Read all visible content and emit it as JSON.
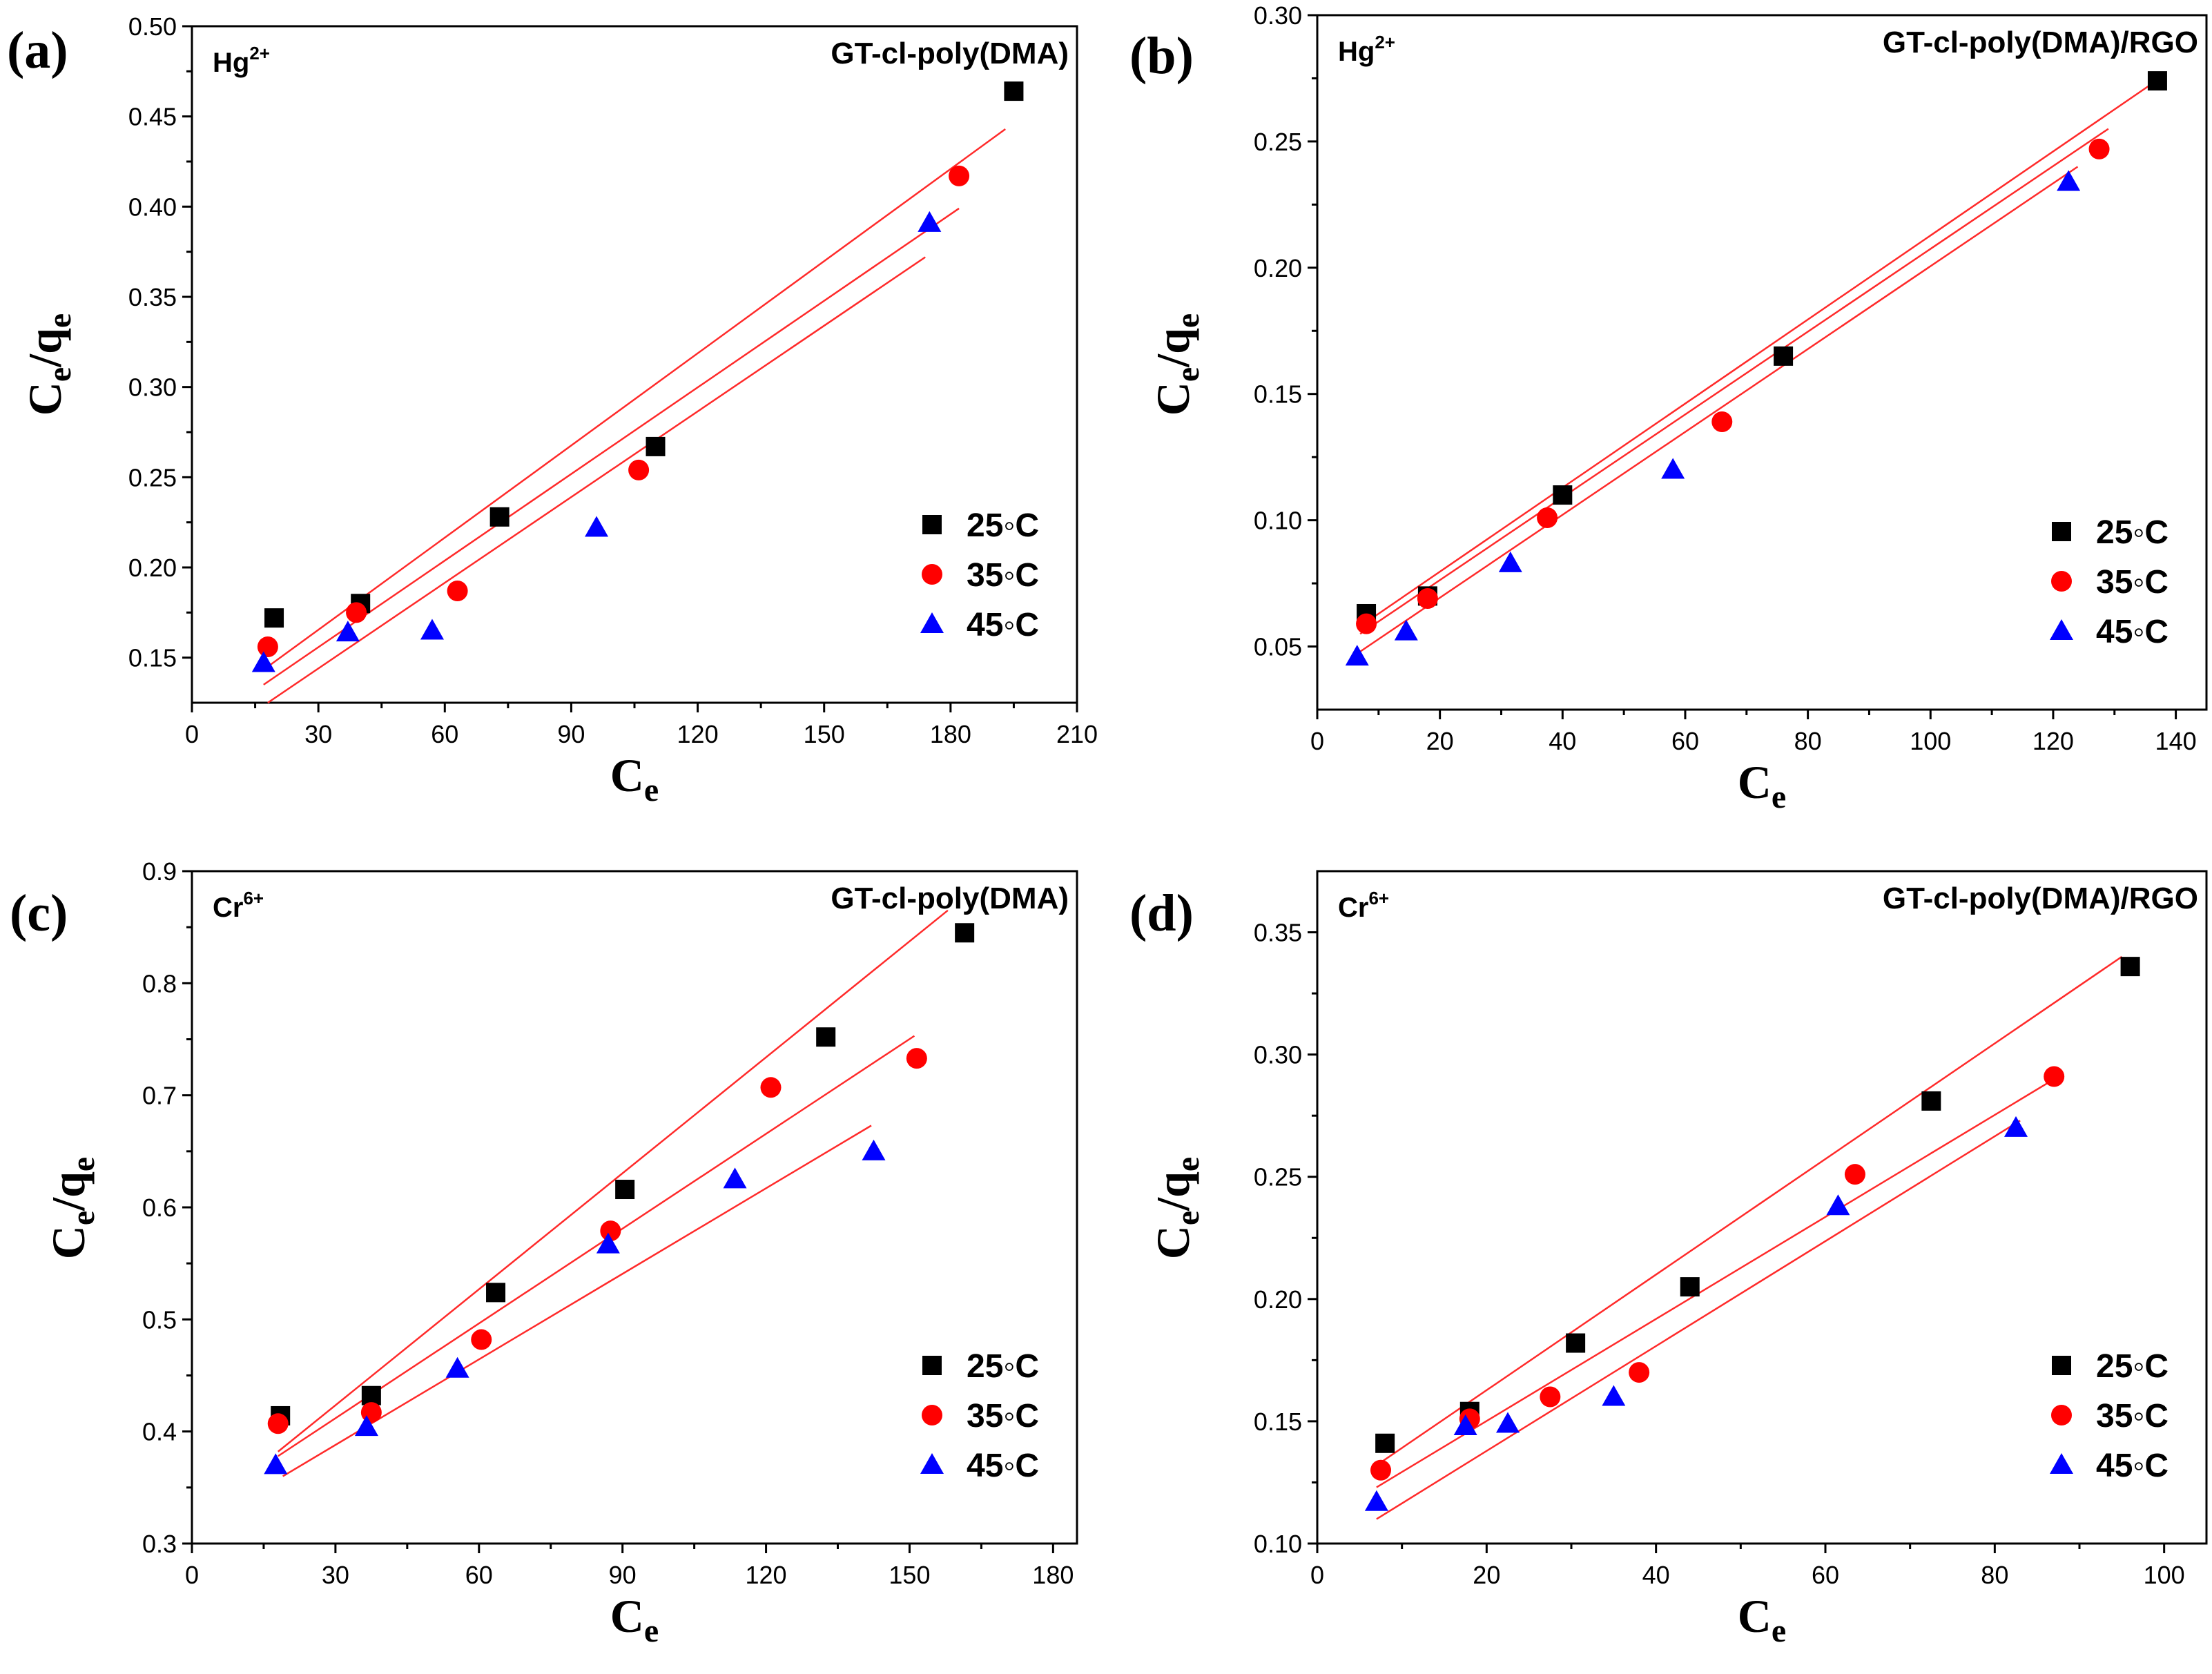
{
  "colors": {
    "s25": "#000000",
    "s35": "#ff0000",
    "s45": "#0000ff",
    "fit": "#ff2a2a"
  },
  "chart_data": [
    {
      "type": "scatter",
      "panel": "(a)",
      "ion": "Hg",
      "ion_charge": "2+",
      "material": "GT-cl-poly(DMA)",
      "xlabel": "Ce",
      "ylabel": "Ce/qe",
      "xlim": [
        0,
        210
      ],
      "ylim": [
        0.125,
        0.5
      ],
      "xticks": [
        0,
        30,
        60,
        90,
        120,
        150,
        180,
        210
      ],
      "xtick_labels": [
        "0",
        "30",
        "60",
        "90",
        "120",
        "150",
        "180",
        "210"
      ],
      "yticks": [
        0.15,
        0.2,
        0.25,
        0.3,
        0.35,
        0.4,
        0.45,
        0.5
      ],
      "ytick_labels": [
        "0.15",
        "0.20",
        "0.25",
        "0.30",
        "0.35",
        "0.40",
        "0.45",
        "0.50"
      ],
      "legend_position": "bottom-right",
      "series": [
        {
          "name": "25◦C",
          "marker": "square",
          "x": [
            19.5,
            40,
            73,
            110,
            195
          ],
          "y": [
            0.172,
            0.18,
            0.228,
            0.267,
            0.464
          ],
          "fit_x": [
            18,
            193
          ],
          "fit_y": [
            0.145,
            0.443
          ]
        },
        {
          "name": "35◦C",
          "marker": "circle",
          "x": [
            18,
            39,
            63,
            106,
            182
          ],
          "y": [
            0.156,
            0.175,
            0.187,
            0.254,
            0.417
          ],
          "fit_x": [
            17,
            182
          ],
          "fit_y": [
            0.135,
            0.399
          ]
        },
        {
          "name": "45◦C",
          "marker": "triangle",
          "x": [
            17,
            37,
            57,
            96,
            175
          ],
          "y": [
            0.147,
            0.164,
            0.165,
            0.222,
            0.391
          ],
          "fit_x": [
            18,
            174
          ],
          "fit_y": [
            0.125,
            0.372
          ]
        }
      ]
    },
    {
      "type": "scatter",
      "panel": "(b)",
      "ion": "Hg",
      "ion_charge": "2+",
      "material": "GT-cl-poly(DMA)/RGO",
      "xlabel": "Ce",
      "ylabel": "Ce/qe",
      "xlim": [
        0,
        145
      ],
      "ylim": [
        0.025,
        0.3
      ],
      "xticks": [
        0,
        20,
        40,
        60,
        80,
        100,
        120,
        140
      ],
      "xtick_labels": [
        "0",
        "20",
        "40",
        "60",
        "80",
        "100",
        "120",
        "140"
      ],
      "yticks": [
        0.05,
        0.1,
        0.15,
        0.2,
        0.25,
        0.3
      ],
      "ytick_labels": [
        "0.05",
        "0.10",
        "0.15",
        "0.20",
        "0.25",
        "0.30"
      ],
      "legend_position": "bottom-right",
      "series": [
        {
          "name": "25◦C",
          "marker": "square",
          "x": [
            8,
            18,
            40,
            76,
            137
          ],
          "y": [
            0.063,
            0.07,
            0.11,
            0.165,
            0.274
          ],
          "fit_x": [
            7,
            138
          ],
          "fit_y": [
            0.058,
            0.276
          ]
        },
        {
          "name": "35◦C",
          "marker": "circle",
          "x": [
            8,
            18,
            37.5,
            66,
            127.5
          ],
          "y": [
            0.059,
            0.069,
            0.101,
            0.139,
            0.247
          ],
          "fit_x": [
            7,
            129
          ],
          "fit_y": [
            0.055,
            0.255
          ]
        },
        {
          "name": "45◦C",
          "marker": "triangle",
          "x": [
            6.5,
            14.5,
            31.5,
            58,
            122.5
          ],
          "y": [
            0.046,
            0.056,
            0.083,
            0.12,
            0.234
          ],
          "fit_x": [
            7,
            124
          ],
          "fit_y": [
            0.048,
            0.24
          ]
        }
      ]
    },
    {
      "type": "scatter",
      "panel": "(c)",
      "ion": "Cr",
      "ion_charge": "6+",
      "material": "GT-cl-poly(DMA)",
      "xlabel": "Ce",
      "ylabel": "Ce/qe",
      "xlim": [
        0,
        185
      ],
      "ylim": [
        0.3,
        0.9
      ],
      "xticks": [
        0,
        30,
        60,
        90,
        120,
        150,
        180
      ],
      "xtick_labels": [
        "0",
        "30",
        "60",
        "90",
        "120",
        "150",
        "180"
      ],
      "yticks": [
        0.3,
        0.4,
        0.5,
        0.6,
        0.7,
        0.8,
        0.9
      ],
      "ytick_labels": [
        "0.3",
        "0.4",
        "0.5",
        "0.6",
        "0.7",
        "0.8",
        "0.9"
      ],
      "legend_position": "bottom-right",
      "series": [
        {
          "name": "25◦C",
          "marker": "square",
          "x": [
            18.5,
            37.5,
            63.5,
            90.5,
            132.5,
            161.5
          ],
          "y": [
            0.414,
            0.432,
            0.524,
            0.616,
            0.752,
            0.845
          ],
          "fit_x": [
            18,
            158
          ],
          "fit_y": [
            0.382,
            0.865
          ]
        },
        {
          "name": "35◦C",
          "marker": "circle",
          "x": [
            18,
            37.5,
            60.5,
            87.5,
            121,
            151.5
          ],
          "y": [
            0.407,
            0.417,
            0.482,
            0.579,
            0.707,
            0.733
          ],
          "fit_x": [
            18,
            151
          ],
          "fit_y": [
            0.378,
            0.753
          ]
        },
        {
          "name": "45◦C",
          "marker": "triangle",
          "x": [
            17.5,
            36.5,
            55.5,
            87,
            113.5,
            142.5
          ],
          "y": [
            0.37,
            0.404,
            0.456,
            0.567,
            0.625,
            0.65
          ],
          "fit_x": [
            19,
            142
          ],
          "fit_y": [
            0.36,
            0.673
          ]
        }
      ]
    },
    {
      "type": "scatter",
      "panel": "(d)",
      "ion": "Cr",
      "ion_charge": "6+",
      "material": "GT-cl-poly(DMA)/RGO",
      "xlabel": "Ce",
      "ylabel": "Ce/qe",
      "xlim": [
        0,
        105
      ],
      "ylim": [
        0.1,
        0.375
      ],
      "xticks": [
        0,
        20,
        40,
        60,
        80,
        100
      ],
      "xtick_labels": [
        "0",
        "20",
        "40",
        "60",
        "80",
        "100"
      ],
      "yticks": [
        0.1,
        0.15,
        0.2,
        0.25,
        0.3,
        0.35
      ],
      "ytick_labels": [
        "0.10",
        "0.15",
        "0.20",
        "0.25",
        "0.30",
        "0.35"
      ],
      "legend_position": "bottom-right",
      "series": [
        {
          "name": "25◦C",
          "marker": "square",
          "x": [
            8,
            18,
            30.5,
            44,
            72.5,
            96
          ],
          "y": [
            0.141,
            0.154,
            0.182,
            0.205,
            0.281,
            0.336
          ],
          "fit_x": [
            7,
            95
          ],
          "fit_y": [
            0.132,
            0.34
          ]
        },
        {
          "name": "35◦C",
          "marker": "circle",
          "x": [
            7.5,
            18,
            27.5,
            38,
            63.5,
            87
          ],
          "y": [
            0.13,
            0.151,
            0.16,
            0.17,
            0.251,
            0.291
          ],
          "fit_x": [
            7,
            88
          ],
          "fit_y": [
            0.123,
            0.292
          ]
        },
        {
          "name": "45◦C",
          "marker": "triangle",
          "x": [
            7,
            17.5,
            22.5,
            35,
            61.5,
            82.5
          ],
          "y": [
            0.117,
            0.148,
            0.149,
            0.16,
            0.238,
            0.27
          ],
          "fit_x": [
            7,
            83
          ],
          "fit_y": [
            0.11,
            0.273
          ]
        }
      ]
    }
  ]
}
